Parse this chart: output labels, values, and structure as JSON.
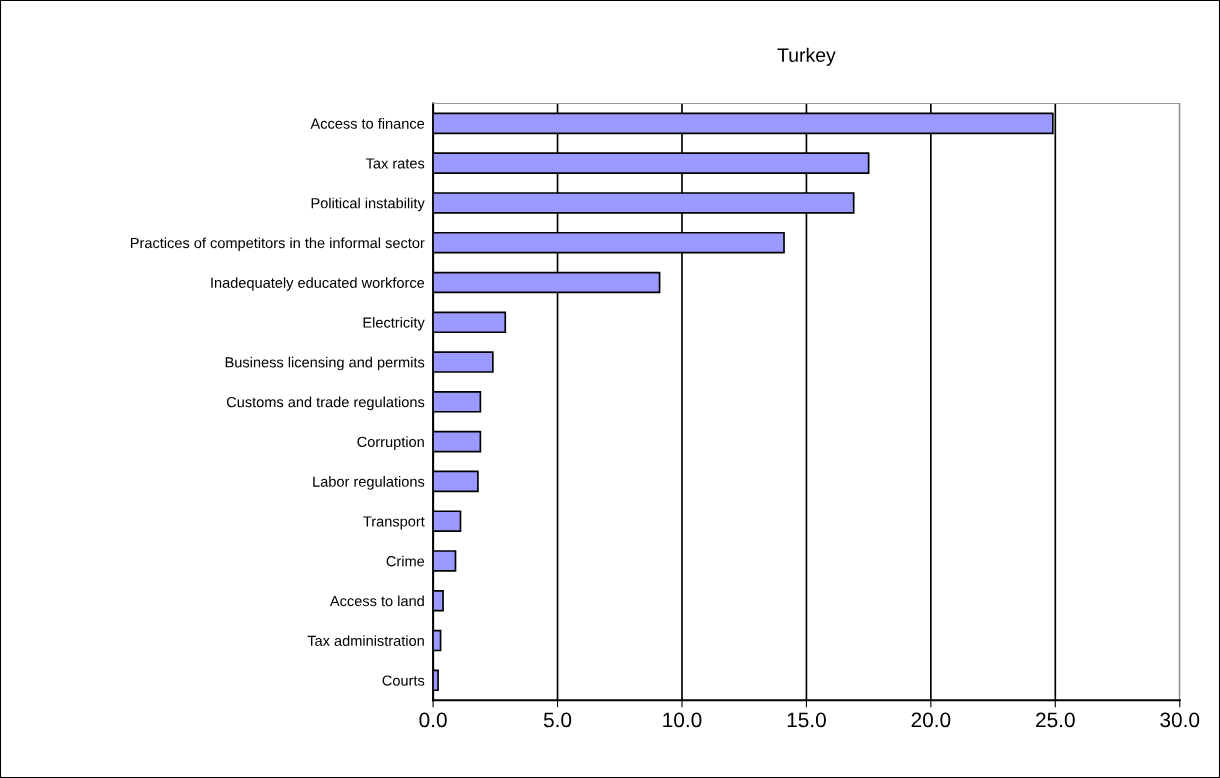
{
  "chart_data": {
    "type": "bar",
    "orientation": "horizontal",
    "title": "Turkey",
    "categories": [
      "Access to finance",
      "Tax rates",
      "Political instability",
      "Practices of competitors in the informal sector",
      "Inadequately educated workforce",
      "Electricity",
      "Business licensing and permits",
      "Customs and trade regulations",
      "Corruption",
      "Labor regulations",
      "Transport",
      "Crime",
      "Access to land",
      "Tax administration",
      "Courts"
    ],
    "values": [
      24.9,
      17.5,
      16.9,
      14.1,
      9.1,
      2.9,
      2.4,
      1.9,
      1.9,
      1.8,
      1.1,
      0.9,
      0.4,
      0.3,
      0.2
    ],
    "color": "#9999ff",
    "xlim": [
      0,
      30
    ],
    "xticks": [
      {
        "value": 0,
        "label": "0.0"
      },
      {
        "value": 5,
        "label": "5.0"
      },
      {
        "value": 10,
        "label": "10.0"
      },
      {
        "value": 15,
        "label": "15.0"
      },
      {
        "value": 20,
        "label": "20.0"
      },
      {
        "value": 25,
        "label": "25.0"
      },
      {
        "value": 30,
        "label": "30.0"
      }
    ],
    "grid": "x",
    "legend": false
  }
}
